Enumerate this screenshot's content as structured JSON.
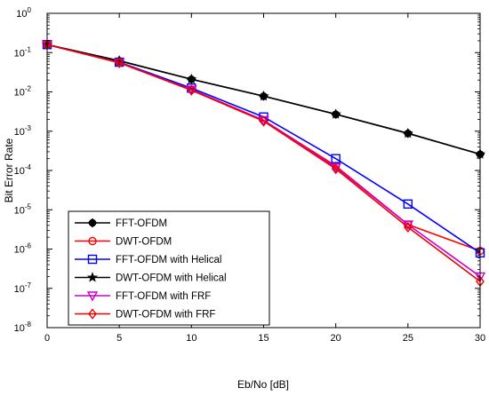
{
  "chart_data": {
    "type": "line",
    "title": "",
    "xlabel": "Eb/No [dB]",
    "ylabel": "Bit Error Rate",
    "xlim": [
      0,
      30
    ],
    "ylim_exponents": [
      -8,
      0
    ],
    "yscale": "log",
    "grid": false,
    "legend_position": "bottom-left",
    "x_ticks": [
      "0",
      "5",
      "10",
      "15",
      "20",
      "25",
      "30"
    ],
    "y_tick_base": "10",
    "y_tick_exponents": [
      "-8",
      "-7",
      "-6",
      "-5",
      "-4",
      "-3",
      "-2",
      "-1",
      "0"
    ],
    "x": [
      0,
      5,
      10,
      15,
      20,
      25,
      30
    ],
    "series": [
      {
        "name": "FFT-OFDM",
        "color": "#000000",
        "marker": "plus-circle",
        "values": [
          0.16,
          0.062,
          0.021,
          0.0078,
          0.0027,
          0.00088,
          0.00026
        ]
      },
      {
        "name": "DWT-OFDM",
        "color": "#ff0000",
        "marker": "circle",
        "values": [
          0.16,
          0.056,
          0.0115,
          0.0019,
          0.00013,
          4.2e-06,
          9e-07
        ]
      },
      {
        "name": "FFT-OFDM with Helical",
        "color": "#0000ff",
        "marker": "square",
        "values": [
          0.16,
          0.057,
          0.0125,
          0.0023,
          0.0002,
          1.4e-05,
          8e-07
        ]
      },
      {
        "name": "DWT-OFDM with Helical",
        "color": "#000000",
        "marker": "star",
        "values": [
          0.16,
          0.062,
          0.021,
          0.0078,
          0.0027,
          0.00088,
          0.00026
        ]
      },
      {
        "name": "FFT-OFDM with FRF",
        "color": "#cc00cc",
        "marker": "triangle-down",
        "values": [
          0.16,
          0.056,
          0.0113,
          0.0019,
          0.00012,
          4.2e-06,
          2e-07
        ]
      },
      {
        "name": "DWT-OFDM with FRF",
        "color": "#ee0000",
        "marker": "diamond",
        "values": [
          0.16,
          0.055,
          0.011,
          0.0018,
          0.00011,
          3.6e-06,
          1.5e-07
        ]
      }
    ]
  }
}
